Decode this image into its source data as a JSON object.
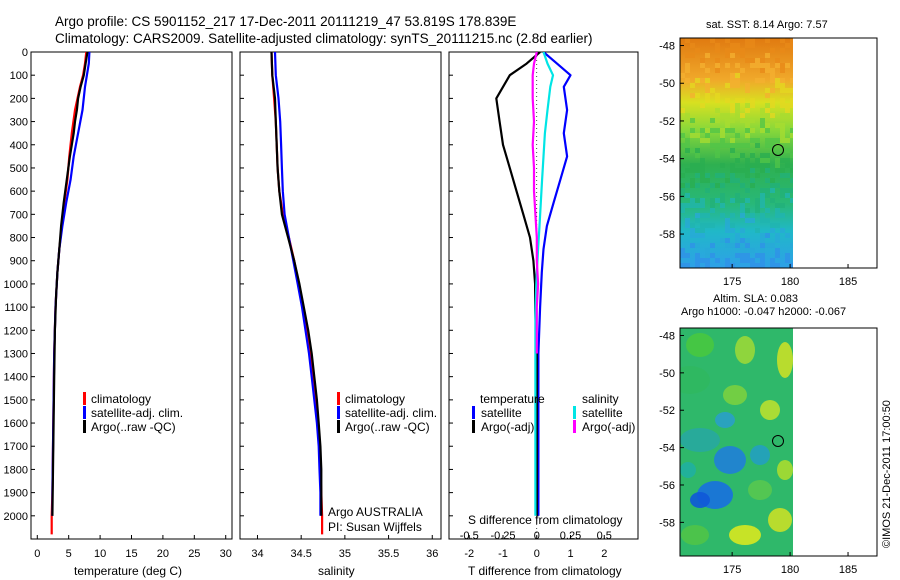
{
  "title": {
    "line1": "Argo profile: CS 5901152_217 17-Dec-2011 20111219_47 53.819S 178.839E",
    "line2": "Climatology: CARS2009. Satellite-adjusted climatology: synTS_20111215.nc (2.8d earlier)"
  },
  "colors": {
    "climatology": "#ff0000",
    "satellite": "#0000ff",
    "argo": "#000000",
    "argo_salinity": "#ff00ff",
    "satellite_salinity": "#00e5e5"
  },
  "chart_data": [
    {
      "type": "line",
      "name": "temperature-panel",
      "xlabel": "temperature (deg C)",
      "ylim": [
        2100,
        0
      ],
      "xlim": [
        -1,
        31
      ],
      "xticks": [
        0,
        5,
        10,
        15,
        20,
        25,
        30
      ],
      "yticks": [
        0,
        100,
        200,
        300,
        400,
        500,
        600,
        700,
        800,
        900,
        1000,
        1100,
        1200,
        1300,
        1400,
        1500,
        1600,
        1700,
        1800,
        1900,
        2000
      ],
      "legend": [
        "climatology",
        "satellite-adj. clim.",
        "Argo(..raw -QC)"
      ],
      "series": [
        {
          "name": "climatology",
          "color": "#ff0000",
          "points": [
            [
              7.8,
              0
            ],
            [
              7.6,
              50
            ],
            [
              7.3,
              100
            ],
            [
              6.8,
              150
            ],
            [
              6.0,
              250
            ],
            [
              5.5,
              350
            ],
            [
              5.1,
              450
            ],
            [
              4.8,
              550
            ],
            [
              4.3,
              650
            ],
            [
              3.9,
              750
            ],
            [
              3.5,
              850
            ],
            [
              3.2,
              950
            ],
            [
              2.9,
              1100
            ],
            [
              2.7,
              1300
            ],
            [
              2.6,
              1500
            ],
            [
              2.5,
              1700
            ],
            [
              2.4,
              1900
            ],
            [
              2.3,
              2000
            ],
            [
              2.3,
              2080
            ]
          ]
        },
        {
          "name": "satellite-adj. clim.",
          "color": "#0000ff",
          "points": [
            [
              8.3,
              0
            ],
            [
              8.2,
              50
            ],
            [
              7.9,
              100
            ],
            [
              7.6,
              150
            ],
            [
              7.2,
              250
            ],
            [
              6.5,
              350
            ],
            [
              5.8,
              450
            ],
            [
              5.3,
              550
            ],
            [
              4.6,
              650
            ],
            [
              4.0,
              750
            ],
            [
              3.5,
              850
            ],
            [
              3.2,
              950
            ],
            [
              2.9,
              1100
            ],
            [
              2.7,
              1300
            ],
            [
              2.6,
              1500
            ],
            [
              2.5,
              1700
            ],
            [
              2.4,
              1900
            ],
            [
              2.4,
              2000
            ]
          ]
        },
        {
          "name": "Argo(..raw -QC)",
          "color": "#000000",
          "points": [
            [
              8.0,
              0
            ],
            [
              7.7,
              50
            ],
            [
              7.4,
              100
            ],
            [
              6.9,
              150
            ],
            [
              6.5,
              200
            ],
            [
              6.3,
              250
            ],
            [
              6.0,
              300
            ],
            [
              5.8,
              350
            ],
            [
              5.5,
              400
            ],
            [
              5.2,
              450
            ],
            [
              4.7,
              550
            ],
            [
              4.2,
              650
            ],
            [
              3.8,
              750
            ],
            [
              3.5,
              850
            ],
            [
              3.2,
              950
            ],
            [
              3.0,
              1050
            ],
            [
              2.8,
              1200
            ],
            [
              2.7,
              1400
            ],
            [
              2.6,
              1600
            ],
            [
              2.5,
              1800
            ],
            [
              2.4,
              2000
            ]
          ]
        }
      ]
    },
    {
      "type": "line",
      "name": "salinity-panel",
      "xlabel": "salinity",
      "ylim": [
        2100,
        0
      ],
      "xlim": [
        33.8,
        36.1
      ],
      "xticks": [
        34,
        34.5,
        35,
        35.5,
        36
      ],
      "legend": [
        "climatology",
        "satellite-adj. clim.",
        "Argo(..raw -QC)"
      ],
      "annotation": [
        "Argo AUSTRALIA",
        "PI: Susan Wijffels"
      ],
      "series": [
        {
          "name": "climatology",
          "color": "#ff0000",
          "points": [
            [
              34.16,
              0
            ],
            [
              34.17,
              100
            ],
            [
              34.19,
              200
            ],
            [
              34.21,
              300
            ],
            [
              34.22,
              400
            ],
            [
              34.23,
              500
            ],
            [
              34.25,
              600
            ],
            [
              34.29,
              700
            ],
            [
              34.36,
              800
            ],
            [
              34.42,
              900
            ],
            [
              34.47,
              1000
            ],
            [
              34.52,
              1100
            ],
            [
              34.56,
              1200
            ],
            [
              34.6,
              1300
            ],
            [
              34.63,
              1400
            ],
            [
              34.66,
              1500
            ],
            [
              34.69,
              1600
            ],
            [
              34.71,
              1700
            ],
            [
              34.72,
              1800
            ],
            [
              34.73,
              1900
            ],
            [
              34.74,
              2000
            ],
            [
              34.74,
              2080
            ]
          ]
        },
        {
          "name": "satellite-adj. clim.",
          "color": "#0000ff",
          "points": [
            [
              34.2,
              0
            ],
            [
              34.21,
              100
            ],
            [
              34.24,
              200
            ],
            [
              34.26,
              300
            ],
            [
              34.27,
              400
            ],
            [
              34.28,
              500
            ],
            [
              34.29,
              600
            ],
            [
              34.31,
              700
            ],
            [
              34.36,
              800
            ],
            [
              34.41,
              900
            ],
            [
              34.46,
              1000
            ],
            [
              34.51,
              1100
            ],
            [
              34.55,
              1200
            ],
            [
              34.59,
              1300
            ],
            [
              34.62,
              1400
            ],
            [
              34.65,
              1500
            ],
            [
              34.68,
              1600
            ],
            [
              34.7,
              1700
            ],
            [
              34.71,
              1800
            ],
            [
              34.72,
              1900
            ],
            [
              34.72,
              2000
            ]
          ]
        },
        {
          "name": "Argo(..raw -QC)",
          "color": "#000000",
          "points": [
            [
              34.16,
              0
            ],
            [
              34.17,
              100
            ],
            [
              34.2,
              200
            ],
            [
              34.21,
              300
            ],
            [
              34.22,
              400
            ],
            [
              34.23,
              500
            ],
            [
              34.25,
              600
            ],
            [
              34.28,
              700
            ],
            [
              34.35,
              800
            ],
            [
              34.42,
              900
            ],
            [
              34.48,
              1000
            ],
            [
              34.53,
              1100
            ],
            [
              34.58,
              1200
            ],
            [
              34.62,
              1300
            ],
            [
              34.65,
              1400
            ],
            [
              34.68,
              1500
            ],
            [
              34.7,
              1600
            ],
            [
              34.72,
              1700
            ],
            [
              34.73,
              1800
            ],
            [
              34.73,
              1900
            ],
            [
              34.73,
              2000
            ]
          ]
        }
      ]
    },
    {
      "type": "line",
      "name": "difference-panel",
      "xlabel": "T difference from climatology",
      "xlabel2": "S difference from climatology",
      "ylim": [
        2100,
        0
      ],
      "xlim": [
        -2.6,
        3.0
      ],
      "xticks": [
        -2,
        -1,
        0,
        1,
        2
      ],
      "sticks": [
        "-0.5",
        "-0.25",
        "0",
        "0.25",
        "0.5"
      ],
      "legend_temperature": [
        "temperature",
        "satellite",
        "Argo(-adj)"
      ],
      "legend_salinity": [
        "salinity",
        "satellite",
        "Argo(-adj)"
      ],
      "series": [
        {
          "name": "T satellite",
          "color": "#0000ff",
          "points": [
            [
              0.2,
              0
            ],
            [
              0.6,
              50
            ],
            [
              1.0,
              100
            ],
            [
              0.8,
              150
            ],
            [
              0.9,
              250
            ],
            [
              0.8,
              350
            ],
            [
              0.9,
              450
            ],
            [
              0.7,
              550
            ],
            [
              0.5,
              650
            ],
            [
              0.3,
              750
            ],
            [
              0.2,
              850
            ],
            [
              0.15,
              950
            ],
            [
              0.1,
              1100
            ],
            [
              0.05,
              1300
            ],
            [
              0.05,
              1500
            ],
            [
              0.05,
              1700
            ],
            [
              0.05,
              1900
            ],
            [
              0.05,
              2000
            ]
          ]
        },
        {
          "name": "T Argo(-adj)",
          "color": "#000000",
          "points": [
            [
              0.1,
              0
            ],
            [
              -0.3,
              50
            ],
            [
              -0.8,
              100
            ],
            [
              -1.2,
              200
            ],
            [
              -1.1,
              300
            ],
            [
              -1.0,
              400
            ],
            [
              -0.8,
              500
            ],
            [
              -0.6,
              600
            ],
            [
              -0.4,
              700
            ],
            [
              -0.2,
              800
            ],
            [
              -0.1,
              900
            ],
            [
              -0.05,
              1000
            ],
            [
              -0.05,
              1100
            ],
            [
              0.0,
              1300
            ],
            [
              0.0,
              1500
            ],
            [
              0.0,
              1700
            ],
            [
              0.0,
              1900
            ],
            [
              0.0,
              2000
            ]
          ]
        },
        {
          "name": "S satellite",
          "color": "#00e5e5",
          "points": [
            [
              0.05,
              0
            ],
            [
              0.08,
              50
            ],
            [
              0.12,
              100
            ],
            [
              0.1,
              150
            ],
            [
              0.08,
              250
            ],
            [
              0.06,
              350
            ],
            [
              0.05,
              450
            ],
            [
              0.04,
              550
            ],
            [
              0.03,
              650
            ],
            [
              0.02,
              750
            ],
            [
              0.01,
              850
            ],
            [
              0.0,
              950
            ],
            [
              -0.01,
              1100
            ],
            [
              -0.01,
              1300
            ],
            [
              -0.01,
              1500
            ],
            [
              -0.01,
              1700
            ],
            [
              -0.01,
              1900
            ],
            [
              -0.01,
              2000
            ]
          ]
        },
        {
          "name": "S Argo(-adj)",
          "color": "#ff00ff",
          "points": [
            [
              0.0,
              0
            ],
            [
              -0.02,
              50
            ],
            [
              -0.03,
              100
            ],
            [
              -0.03,
              200
            ],
            [
              -0.02,
              300
            ],
            [
              -0.03,
              400
            ],
            [
              -0.02,
              500
            ],
            [
              -0.02,
              600
            ],
            [
              -0.01,
              700
            ],
            [
              0.0,
              800
            ],
            [
              0.0,
              900
            ],
            [
              0.01,
              1000
            ],
            [
              0.0,
              1100
            ],
            [
              0.0,
              1300
            ]
          ]
        }
      ]
    },
    {
      "type": "heatmap",
      "name": "sst-map",
      "title": "sat. SST: 8.14  Argo: 7.57",
      "xlim": [
        170.5,
        187.5
      ],
      "ylim": [
        -59.8,
        -47.6
      ],
      "xticks": [
        175,
        180,
        185
      ],
      "yticks": [
        -48,
        -50,
        -52,
        -54,
        -56,
        -58
      ],
      "argo_position": [
        178.84,
        -53.82
      ]
    },
    {
      "type": "heatmap",
      "name": "sla-map",
      "title_line1": "Altim. SLA: 0.083",
      "title_line2": "Argo h1000: -0.047  h2000: -0.067",
      "xlim": [
        170.5,
        187.5
      ],
      "ylim": [
        -59.8,
        -47.6
      ],
      "xticks": [
        175,
        180,
        185
      ],
      "yticks": [
        -48,
        -50,
        -52,
        -54,
        -56,
        -58
      ],
      "argo_position": [
        178.84,
        -53.82
      ]
    }
  ],
  "timestamp": "©IMOS 21-Dec-2011 17:00:50"
}
